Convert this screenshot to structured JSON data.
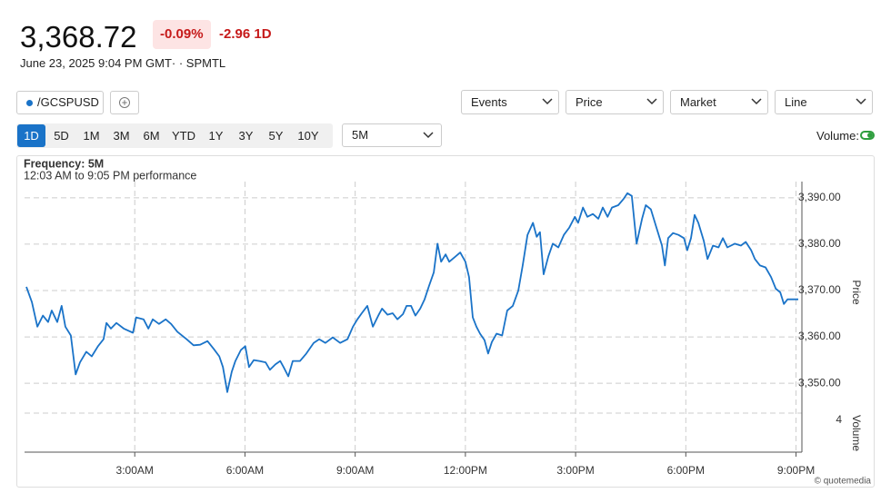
{
  "header": {
    "price": "3,368.72",
    "change_pct": "-0.09%",
    "change": "-2.96 1D",
    "timestamp": "June 23, 2025 9:04 PM GMT· · SPMTL"
  },
  "toolbar": {
    "symbol": "/GCSPUSD",
    "dropdowns": [
      "Events",
      "Price",
      "Market",
      "Line"
    ],
    "ranges": [
      "1D",
      "5D",
      "1M",
      "3M",
      "6M",
      "YTD",
      "1Y",
      "3Y",
      "5Y",
      "10Y"
    ],
    "selected_range": "1D",
    "interval": "5M",
    "volume_label": "Volume:",
    "volume_on": true
  },
  "chart_data": {
    "type": "line",
    "title": "Frequency: 5M",
    "subtitle": "12:03 AM to 9:05 PM performance",
    "ylabel": "Price",
    "color": "#1a73c8",
    "grid": true,
    "x": [
      0.05,
      0.2,
      0.35,
      0.5,
      0.64,
      0.74,
      0.89,
      1.01,
      1.11,
      1.26,
      1.39,
      1.51,
      1.68,
      1.83,
      2.0,
      2.15,
      2.23,
      2.35,
      2.5,
      2.7,
      2.95,
      3.04,
      3.24,
      3.37,
      3.49,
      3.66,
      3.84,
      3.99,
      4.16,
      4.41,
      4.6,
      4.78,
      4.98,
      5.15,
      5.3,
      5.4,
      5.52,
      5.64,
      5.74,
      5.89,
      6.01,
      6.11,
      6.24,
      6.39,
      6.56,
      6.68,
      6.83,
      6.96,
      7.05,
      7.18,
      7.3,
      7.5,
      7.67,
      7.87,
      8.02,
      8.19,
      8.39,
      8.59,
      8.79,
      8.94,
      9.06,
      9.18,
      9.33,
      9.48,
      9.63,
      9.73,
      9.88,
      10.02,
      10.15,
      10.3,
      10.4,
      10.52,
      10.64,
      10.77,
      10.89,
      11.01,
      11.14,
      11.24,
      11.34,
      11.46,
      11.56,
      11.71,
      11.86,
      12.0,
      12.1,
      12.2,
      12.3,
      12.4,
      12.52,
      12.62,
      12.72,
      12.85,
      13.0,
      13.14,
      13.29,
      13.44,
      13.56,
      13.69,
      13.84,
      13.94,
      14.03,
      14.13,
      14.26,
      14.38,
      14.53,
      14.68,
      14.83,
      14.98,
      15.07,
      15.2,
      15.32,
      15.47,
      15.62,
      15.74,
      15.87,
      15.99,
      16.16,
      16.31,
      16.41,
      16.53,
      16.66,
      16.81,
      16.91,
      17.05,
      17.2,
      17.35,
      17.43,
      17.52,
      17.65,
      17.8,
      17.95,
      18.04,
      18.14,
      18.24,
      18.34,
      18.49,
      18.59,
      18.74,
      18.89,
      19.01,
      19.13,
      19.33,
      19.5,
      19.63,
      19.78,
      19.88,
      20.02,
      20.17,
      20.32,
      20.45,
      20.57,
      20.67,
      20.77,
      20.92,
      21.06
    ],
    "values": [
      3370.8,
      3367.5,
      3362.2,
      3364.6,
      3363.2,
      3365.7,
      3363.2,
      3366.7,
      3362.2,
      3360.3,
      3351.9,
      3354.5,
      3356.8,
      3355.8,
      3358.0,
      3359.5,
      3363.0,
      3361.8,
      3363.0,
      3361.8,
      3360.9,
      3364.2,
      3363.8,
      3361.8,
      3363.8,
      3362.8,
      3363.8,
      3362.8,
      3361.1,
      3359.5,
      3358.2,
      3358.3,
      3359.1,
      3357.4,
      3355.8,
      3353.5,
      3348.1,
      3352.5,
      3354.8,
      3357.2,
      3358.0,
      3353.5,
      3355.0,
      3354.8,
      3354.5,
      3352.9,
      3354.1,
      3354.8,
      3353.5,
      3351.5,
      3354.8,
      3354.8,
      3356.4,
      3358.7,
      3359.5,
      3358.7,
      3359.9,
      3358.7,
      3359.5,
      3362.2,
      3363.8,
      3365.1,
      3366.7,
      3362.2,
      3364.6,
      3366.1,
      3364.8,
      3365.1,
      3363.8,
      3364.9,
      3366.7,
      3366.7,
      3364.6,
      3366.1,
      3368.1,
      3371.0,
      3373.9,
      3380.1,
      3376.2,
      3377.8,
      3376.2,
      3377.2,
      3378.2,
      3376.2,
      3372.9,
      3364.2,
      3362.2,
      3360.7,
      3359.3,
      3356.4,
      3358.9,
      3360.7,
      3360.3,
      3365.7,
      3366.7,
      3370.0,
      3375.4,
      3382.0,
      3384.6,
      3381.6,
      3382.6,
      3373.5,
      3377.4,
      3380.1,
      3379.3,
      3382.0,
      3383.6,
      3385.9,
      3384.6,
      3387.9,
      3385.9,
      3386.5,
      3385.5,
      3387.9,
      3385.9,
      3387.9,
      3388.4,
      3389.8,
      3391.0,
      3390.4,
      3380.1,
      3385.5,
      3388.4,
      3387.5,
      3383.6,
      3379.7,
      3375.4,
      3381.3,
      3382.4,
      3382.0,
      3381.3,
      3378.7,
      3381.3,
      3386.3,
      3384.6,
      3380.7,
      3376.8,
      3379.7,
      3379.3,
      3381.3,
      3379.3,
      3380.1,
      3379.7,
      3380.5,
      3378.7,
      3376.8,
      3375.4,
      3375.0,
      3372.9,
      3370.4,
      3369.6,
      3367.1,
      3368.1,
      3368.1,
      3368.1
    ],
    "xlim": [
      0,
      21.16
    ],
    "xticks": [
      {
        "value": 3,
        "label": "3:00AM"
      },
      {
        "value": 6,
        "label": "6:00AM"
      },
      {
        "value": 9,
        "label": "9:00AM"
      },
      {
        "value": 12,
        "label": "12:00PM"
      },
      {
        "value": 15,
        "label": "3:00PM"
      },
      {
        "value": 18,
        "label": "6:00PM"
      },
      {
        "value": 21,
        "label": "9:00PM"
      }
    ],
    "ylim": [
      3346.5,
      3393.5
    ],
    "yticks": [
      {
        "value": 3350,
        "label": "3,350.00"
      },
      {
        "value": 3360,
        "label": "3,360.00"
      },
      {
        "value": 3370,
        "label": "3,370.00"
      },
      {
        "value": 3380,
        "label": "3,380.00"
      },
      {
        "value": 3390,
        "label": "3,390.00"
      }
    ],
    "volume": {
      "label": "Volume",
      "ticks": [
        4
      ]
    }
  },
  "footer": {
    "credit": "© quotemedia"
  }
}
